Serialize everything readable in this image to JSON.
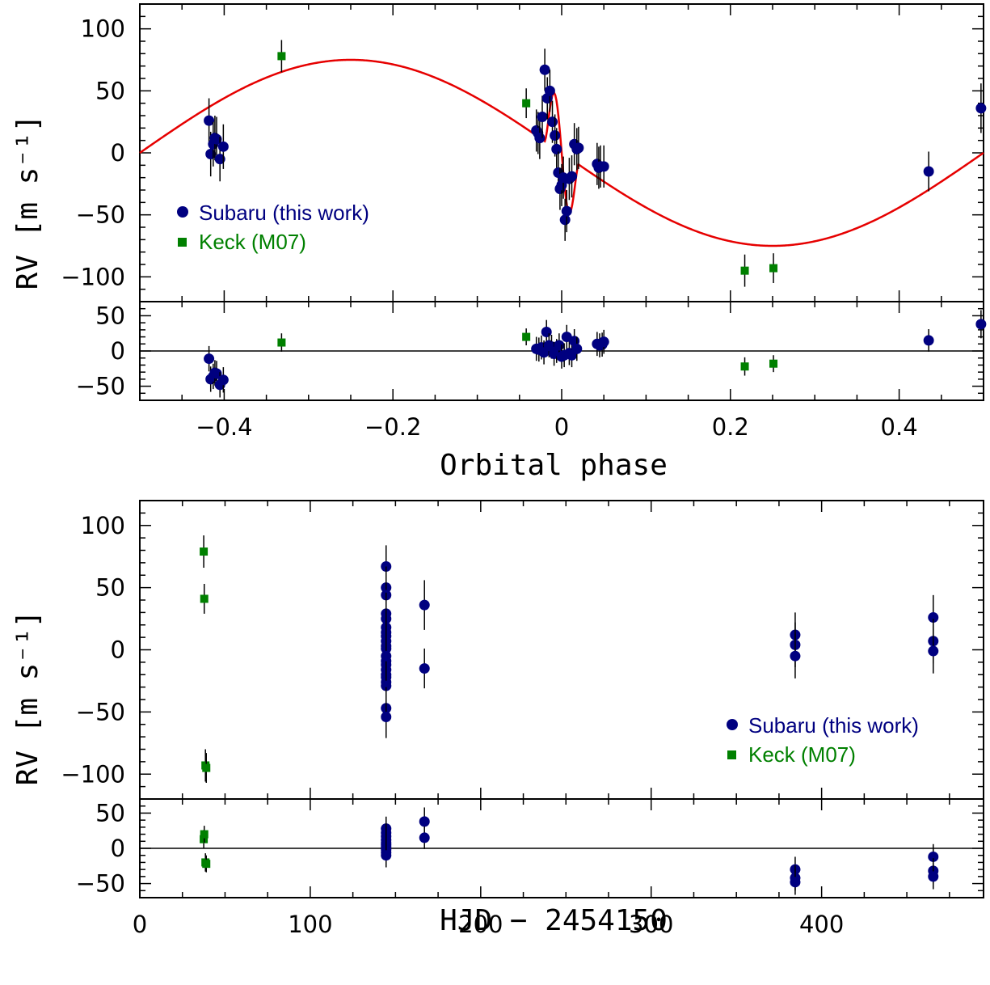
{
  "colors": {
    "subaru": "#000080",
    "keck": "#008000",
    "model": "#e60000",
    "axis": "#000000"
  },
  "legend": {
    "subaru_label": "Subaru (this work)",
    "keck_label": "Keck (M07)"
  },
  "chart_data": [
    {
      "type": "scatter",
      "panel": "top-main",
      "xlabel": "Orbital phase",
      "ylabel": "RV [m s⁻¹]",
      "xlim": [
        -0.5,
        0.5
      ],
      "ylim": [
        -120,
        120
      ],
      "x_ticks": [
        "−0.4",
        "−0.2",
        "0",
        "0.2",
        "0.4"
      ],
      "x_tick_values": [
        -0.4,
        -0.2,
        0,
        0.2,
        0.4
      ],
      "y_ticks": [
        "−100",
        "−50",
        "0",
        "50",
        "100"
      ],
      "y_tick_values": [
        -100,
        -50,
        0,
        50,
        100
      ],
      "legend_position": "middle-left",
      "model": {
        "name": "model",
        "amplitude": 75,
        "rm_center": 0,
        "rm_amplitude": 40,
        "rm_halfwidth": 0.02
      },
      "series": [
        {
          "name": "Subaru (this work)",
          "marker": "circle",
          "x": [
            -0.418,
            -0.416,
            -0.413,
            -0.411,
            -0.409,
            -0.405,
            -0.401,
            -0.03,
            -0.028,
            -0.026,
            -0.023,
            -0.02,
            -0.017,
            -0.014,
            -0.011,
            -0.008,
            -0.006,
            -0.004,
            -0.002,
            0.0,
            0.002,
            0.004,
            0.006,
            0.009,
            0.012,
            0.015,
            0.018,
            0.02,
            0.042,
            0.044,
            0.046,
            0.05,
            0.435,
            0.497
          ],
          "y": [
            26,
            -1,
            7,
            12,
            11,
            -5,
            5,
            18,
            16,
            12,
            29,
            67,
            44,
            50,
            25,
            14,
            3,
            -16,
            -29,
            -26,
            -20,
            -54,
            -47,
            -21,
            -19,
            7,
            3,
            4,
            -9,
            -12,
            -11,
            -11,
            -15,
            36
          ],
          "err": [
            18,
            18,
            18,
            18,
            18,
            18,
            18,
            17,
            17,
            17,
            17,
            17,
            17,
            17,
            17,
            17,
            17,
            17,
            17,
            17,
            17,
            17,
            17,
            17,
            17,
            17,
            17,
            17,
            17,
            17,
            17,
            17,
            16,
            20
          ]
        },
        {
          "name": "Keck (M07)",
          "marker": "square",
          "x": [
            -0.332,
            -0.042,
            0.217,
            0.251
          ],
          "y": [
            78,
            40,
            -95,
            -93
          ],
          "err": [
            13,
            12,
            13,
            12
          ]
        }
      ]
    },
    {
      "type": "scatter",
      "panel": "top-residual",
      "xlim": [
        -0.5,
        0.5
      ],
      "ylim": [
        -70,
        70
      ],
      "y_ticks": [
        "−50",
        "0",
        "50"
      ],
      "y_tick_values": [
        -50,
        0,
        50
      ],
      "series": [
        {
          "name": "Subaru (this work)",
          "marker": "circle",
          "x": [
            -0.418,
            -0.416,
            -0.413,
            -0.411,
            -0.409,
            -0.405,
            -0.401,
            -0.03,
            -0.027,
            -0.024,
            -0.021,
            -0.018,
            -0.015,
            -0.012,
            -0.009,
            -0.006,
            -0.003,
            0.0,
            0.003,
            0.006,
            0.009,
            0.012,
            0.015,
            0.018,
            0.042,
            0.045,
            0.048,
            0.05,
            0.435,
            0.497
          ],
          "y": [
            -11,
            -40,
            -36,
            -31,
            -32,
            -48,
            -41,
            3,
            2,
            5,
            -2,
            27,
            8,
            6,
            -4,
            0,
            8,
            -8,
            -6,
            20,
            -3,
            -6,
            14,
            3,
            10,
            8,
            9,
            13,
            15,
            38
          ],
          "err": [
            18,
            18,
            18,
            18,
            18,
            18,
            18,
            17,
            17,
            17,
            17,
            17,
            17,
            17,
            17,
            17,
            17,
            17,
            17,
            17,
            17,
            17,
            17,
            17,
            17,
            17,
            17,
            17,
            16,
            20
          ]
        },
        {
          "name": "Keck (M07)",
          "marker": "square",
          "x": [
            -0.332,
            -0.042,
            0.217,
            0.251
          ],
          "y": [
            12,
            20,
            -22,
            -18
          ],
          "err": [
            13,
            12,
            13,
            12
          ]
        }
      ]
    },
    {
      "type": "scatter",
      "panel": "bottom-main",
      "xlabel": "HJD − 2454150",
      "ylabel": "RV [m s⁻¹]",
      "xlim": [
        0,
        495
      ],
      "ylim": [
        -120,
        120
      ],
      "x_ticks": [
        "0",
        "100",
        "200",
        "300",
        "400"
      ],
      "x_tick_values": [
        0,
        100,
        200,
        300,
        400
      ],
      "y_ticks": [
        "−100",
        "−50",
        "0",
        "50",
        "100"
      ],
      "y_tick_values": [
        -100,
        -50,
        0,
        50,
        100
      ],
      "legend_position": "bottom-right",
      "series": [
        {
          "name": "Subaru (this work)",
          "marker": "circle",
          "x": [
            144.5,
            144.5,
            144.5,
            144.5,
            144.5,
            144.5,
            144.5,
            144.5,
            144.5,
            144.5,
            144.5,
            144.5,
            144.5,
            144.5,
            144.5,
            144.5,
            144.5,
            144.5,
            144.5,
            144.5,
            144.5,
            167,
            167,
            384.5,
            384.5,
            384.5,
            465.5,
            465.5,
            465.5
          ],
          "y": [
            67,
            50,
            44,
            29,
            25,
            18,
            14,
            11,
            7,
            3,
            -9,
            -12,
            -16,
            -20,
            -22,
            -26,
            -29,
            -47,
            -54,
            1,
            -5,
            36,
            -15,
            12,
            4,
            -5,
            26,
            7,
            -1
          ],
          "err": [
            17,
            17,
            17,
            17,
            17,
            17,
            17,
            17,
            17,
            17,
            17,
            17,
            17,
            17,
            17,
            17,
            17,
            17,
            17,
            17,
            17,
            20,
            16,
            18,
            18,
            18,
            18,
            18,
            18
          ]
        },
        {
          "name": "Keck (M07)",
          "marker": "square",
          "x": [
            37.5,
            37.8,
            38.5,
            39.0
          ],
          "y": [
            79,
            41,
            -93,
            -95
          ],
          "err": [
            13,
            12,
            13,
            12
          ]
        }
      ]
    },
    {
      "type": "scatter",
      "panel": "bottom-residual",
      "xlim": [
        0,
        495
      ],
      "ylim": [
        -70,
        70
      ],
      "y_ticks": [
        "−50",
        "0",
        "50"
      ],
      "y_tick_values": [
        -50,
        0,
        50
      ],
      "series": [
        {
          "name": "Subaru (this work)",
          "marker": "circle",
          "x": [
            144.5,
            144.5,
            144.5,
            144.5,
            144.5,
            144.5,
            144.5,
            144.5,
            144.5,
            144.5,
            167,
            167,
            384.5,
            384.5,
            384.5,
            465.5,
            465.5,
            465.5
          ],
          "y": [
            28,
            22,
            17,
            12,
            8,
            5,
            2,
            -2,
            -6,
            -10,
            38,
            15,
            -30,
            -42,
            -48,
            -12,
            -32,
            -40
          ],
          "err": [
            17,
            17,
            17,
            17,
            17,
            17,
            17,
            17,
            17,
            17,
            20,
            16,
            18,
            18,
            18,
            18,
            18,
            18
          ]
        },
        {
          "name": "Keck (M07)",
          "marker": "square",
          "x": [
            37.5,
            37.8,
            38.5,
            39.0
          ],
          "y": [
            13,
            20,
            -20,
            -22
          ],
          "err": [
            13,
            12,
            13,
            12
          ]
        }
      ]
    }
  ]
}
